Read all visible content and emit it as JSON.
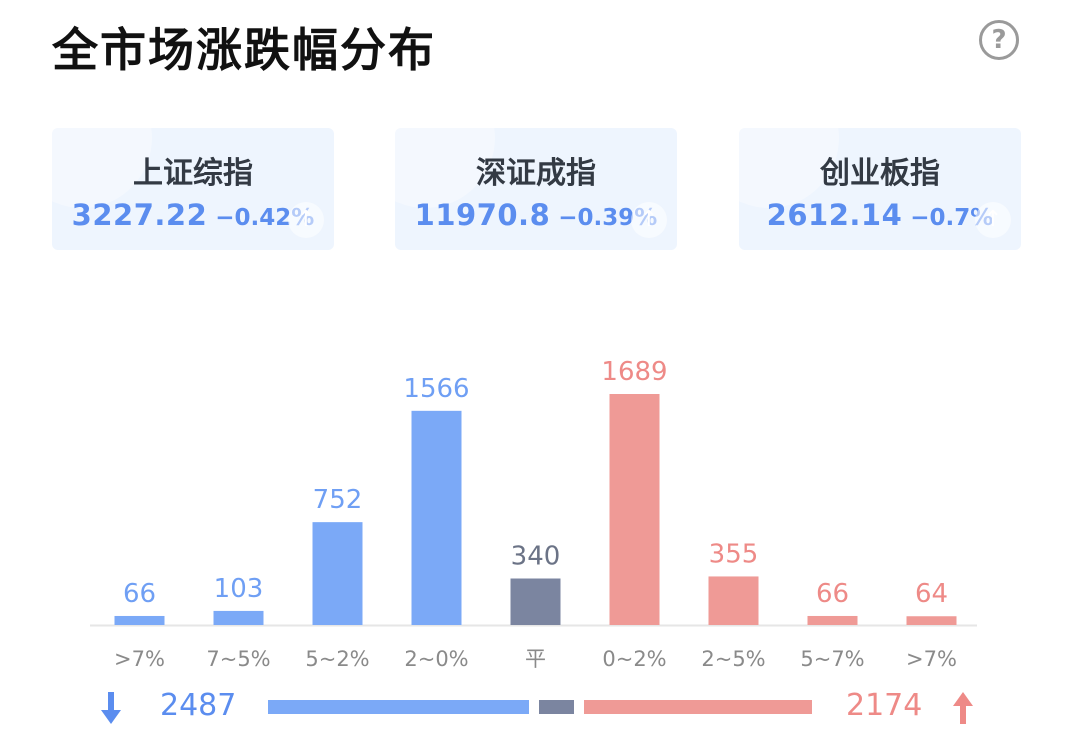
{
  "header": {
    "title": "全市场涨跌幅分布",
    "help_label": "?"
  },
  "indices": [
    {
      "name": "上证综指",
      "value": "3227.22",
      "change": "−0.42%"
    },
    {
      "name": "深证成指",
      "value": "11970.8",
      "change": "−0.39%"
    },
    {
      "name": "创业板指",
      "value": "2612.14",
      "change": "−0.7%"
    }
  ],
  "chart_data": {
    "type": "bar",
    "categories": [
      ">7%",
      "7~5%",
      "5~2%",
      "2~0%",
      "平",
      "0~2%",
      "2~5%",
      "5~7%",
      ">7%"
    ],
    "values": [
      66,
      103,
      752,
      1566,
      340,
      1689,
      355,
      66,
      64
    ],
    "bar_colors": [
      "#7ba9f7",
      "#7ba9f7",
      "#7ba9f7",
      "#7ba9f7",
      "#7b85a0",
      "#ef9a96",
      "#ef9a96",
      "#ef9a96",
      "#ef9a96"
    ],
    "label_colors": [
      "#6f9ff4",
      "#6f9ff4",
      "#6f9ff4",
      "#6f9ff4",
      "#6b7386",
      "#ee8a87",
      "#ee8a87",
      "#ee8a87",
      "#ee8a87"
    ],
    "title": "",
    "xlabel": "",
    "ylabel": "",
    "ylim": [
      0,
      1689
    ],
    "grid": false
  },
  "summary": {
    "fall_total": "2487",
    "rise_total": "2174",
    "flat_total": 340,
    "fall_color": "#7ba9f7",
    "flat_color": "#7b85a0",
    "rise_color": "#ef9a96"
  }
}
